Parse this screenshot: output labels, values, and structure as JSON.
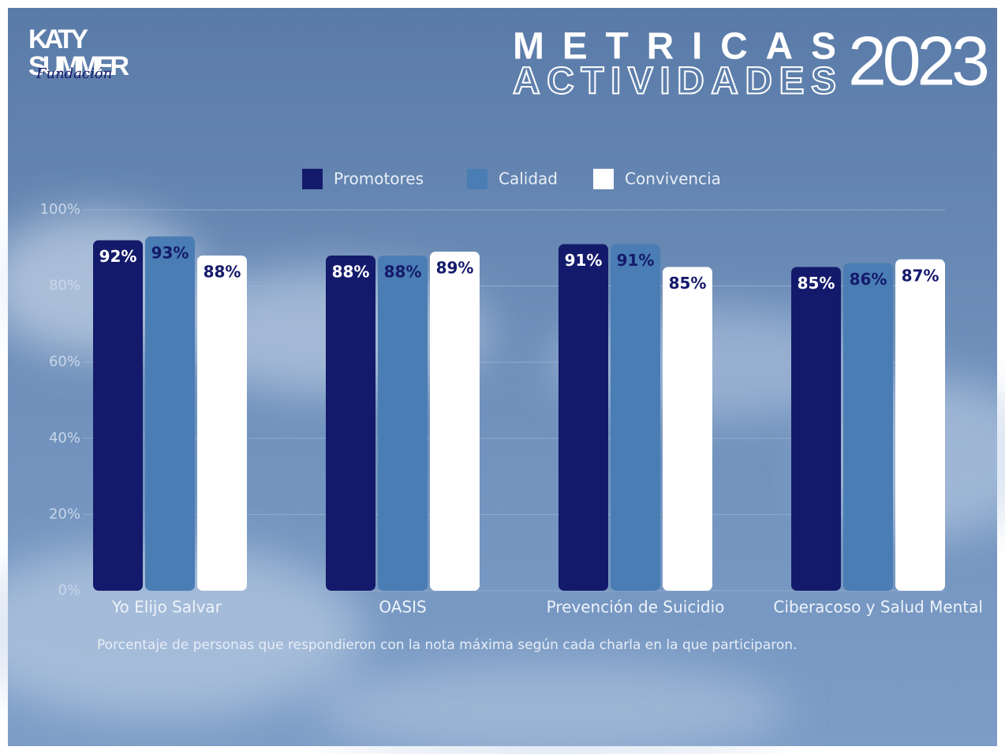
{
  "brand": {
    "line1": "KATY",
    "line2": "SUMMER",
    "script": "Fundación"
  },
  "header": {
    "title_top": "METRICAS",
    "title_bottom": "ACTIVIDADES",
    "year": "2023"
  },
  "chart_data": {
    "type": "bar",
    "categories": [
      "Yo Elijo Salvar",
      "OASIS",
      "Prevención de Suicidio",
      "Ciberacoso y Salud Mental"
    ],
    "series": [
      {
        "name": "Promotores",
        "color": "#141a6b",
        "label_color": "#ffffff",
        "values": [
          92,
          88,
          91,
          85
        ],
        "value_labels": [
          "92%",
          "88%",
          "91%",
          "85%"
        ]
      },
      {
        "name": "Calidad",
        "color": "#4a7db3",
        "label_color": "#141a6b",
        "values": [
          93,
          88,
          91,
          86
        ],
        "value_labels": [
          "93%",
          "88%",
          "91%",
          "86%"
        ]
      },
      {
        "name": "Convivencia",
        "color": "#ffffff",
        "label_color": "#141a6b",
        "values": [
          88,
          89,
          85,
          87
        ],
        "value_labels": [
          "88%",
          "89%",
          "85%",
          "87%"
        ]
      }
    ],
    "ylim": [
      0,
      100
    ],
    "yticks": [
      {
        "value": 0,
        "label": "0%"
      },
      {
        "value": 20,
        "label": "20%"
      },
      {
        "value": 40,
        "label": "40%"
      },
      {
        "value": 60,
        "label": "60%"
      },
      {
        "value": 80,
        "label": "80%"
      },
      {
        "value": 100,
        "label": "100%"
      }
    ],
    "grid": true,
    "legend": "top",
    "note": "Porcentaje de personas que respondieron con la nota máxima según cada charla en la que participaron."
  }
}
